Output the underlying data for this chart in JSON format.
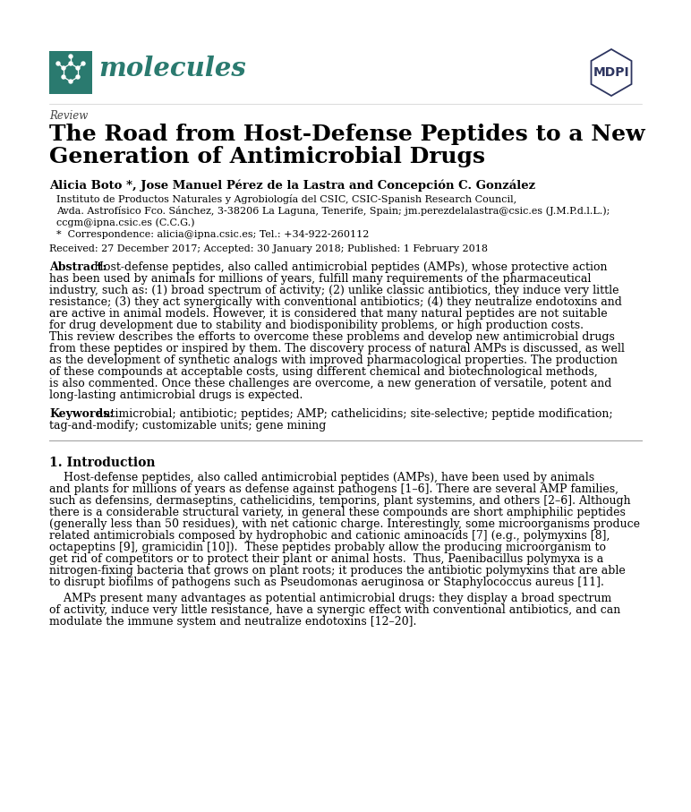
{
  "bg_color": "#ffffff",
  "journal_name": "molecules",
  "journal_color": "#2a7a6f",
  "mdpi_color": "#2d3560",
  "article_type": "Review",
  "title_line1": "The Road from Host-Defense Peptides to a New",
  "title_line2": "Generation of Antimicrobial Drugs",
  "authors": "Alicia Boto *, Jose Manuel Pérez de la Lastra and Concepción C. González",
  "affiliation1": "Instituto de Productos Naturales y Agrobiología del CSIC, CSIC-Spanish Research Council,",
  "affiliation2": "Avda. Astrofísico Fco. Sánchez, 3-38206 La Laguna, Tenerife, Spain; jm.perezdelalastra@csic.es (J.M.P.d.l.L.);",
  "affiliation3": "ccgm@ipna.csic.es (C.C.G.)",
  "correspondence": "*  Correspondence: alicia@ipna.csic.es; Tel.: +34-922-260112",
  "received": "Received: 27 December 2017; Accepted: 30 January 2018; Published: 1 February 2018",
  "abstract_label": "Abstract:",
  "abstract_lines": [
    "Host-defense peptides, also called antimicrobial peptides (AMPs), whose protective action",
    "has been used by animals for millions of years, fulfill many requirements of the pharmaceutical",
    "industry, such as: (1) broad spectrum of activity; (2) unlike classic antibiotics, they induce very little",
    "resistance; (3) they act synergically with conventional antibiotics; (4) they neutralize endotoxins and",
    "are active in animal models. However, it is considered that many natural peptides are not suitable",
    "for drug development due to stability and biodisponibility problems, or high production costs.",
    "This review describes the efforts to overcome these problems and develop new antimicrobial drugs",
    "from these peptides or inspired by them. The discovery process of natural AMPs is discussed, as well",
    "as the development of synthetic analogs with improved pharmacological properties. The production",
    "of these compounds at acceptable costs, using different chemical and biotechnological methods,",
    "is also commented. Once these challenges are overcome, a new generation of versatile, potent and",
    "long-lasting antimicrobial drugs is expected."
  ],
  "keywords_label": "Keywords:",
  "keywords_line1": "antimicrobial; antibiotic; peptides; AMP; cathelicidins; site-selective; peptide modification;",
  "keywords_line2": "tag-and-modify; customizable units; gene mining",
  "section1_title": "1. Introduction",
  "intro1_lines": [
    "    Host-defense peptides, also called antimicrobial peptides (AMPs), have been used by animals",
    "and plants for millions of years as defense against pathogens [1–6]. There are several AMP families,",
    "such as defensins, dermaseptins, cathelicidins, temporins, plant systemins, and others [2–6]. Although",
    "there is a considerable structural variety, in general these compounds are short amphiphilic peptides",
    "(generally less than 50 residues), with net cationic charge. Interestingly, some microorganisms produce",
    "related antimicrobials composed by hydrophobic and cationic aminoacids [7] (e.g., polymyxins [8],",
    "octapeptins [9], gramicidin [10]).  These peptides probably allow the producing microorganism to",
    "get rid of competitors or to protect their plant or animal hosts.  Thus, Paenibacillus polymyxa is a",
    "nitrogen-fixing bacteria that grows on plant roots; it produces the antibiotic polymyxins that are able",
    "to disrupt biofilms of pathogens such as Pseudomonas aeruginosa or Staphylococcus aureus [11]."
  ],
  "intro2_lines": [
    "    AMPs present many advantages as potential antimicrobial drugs: they display a broad spectrum",
    "of activity, induce very little resistance, have a synergic effect with conventional antibiotics, and can",
    "modulate the immune system and neutralize endotoxins [12–20]."
  ]
}
